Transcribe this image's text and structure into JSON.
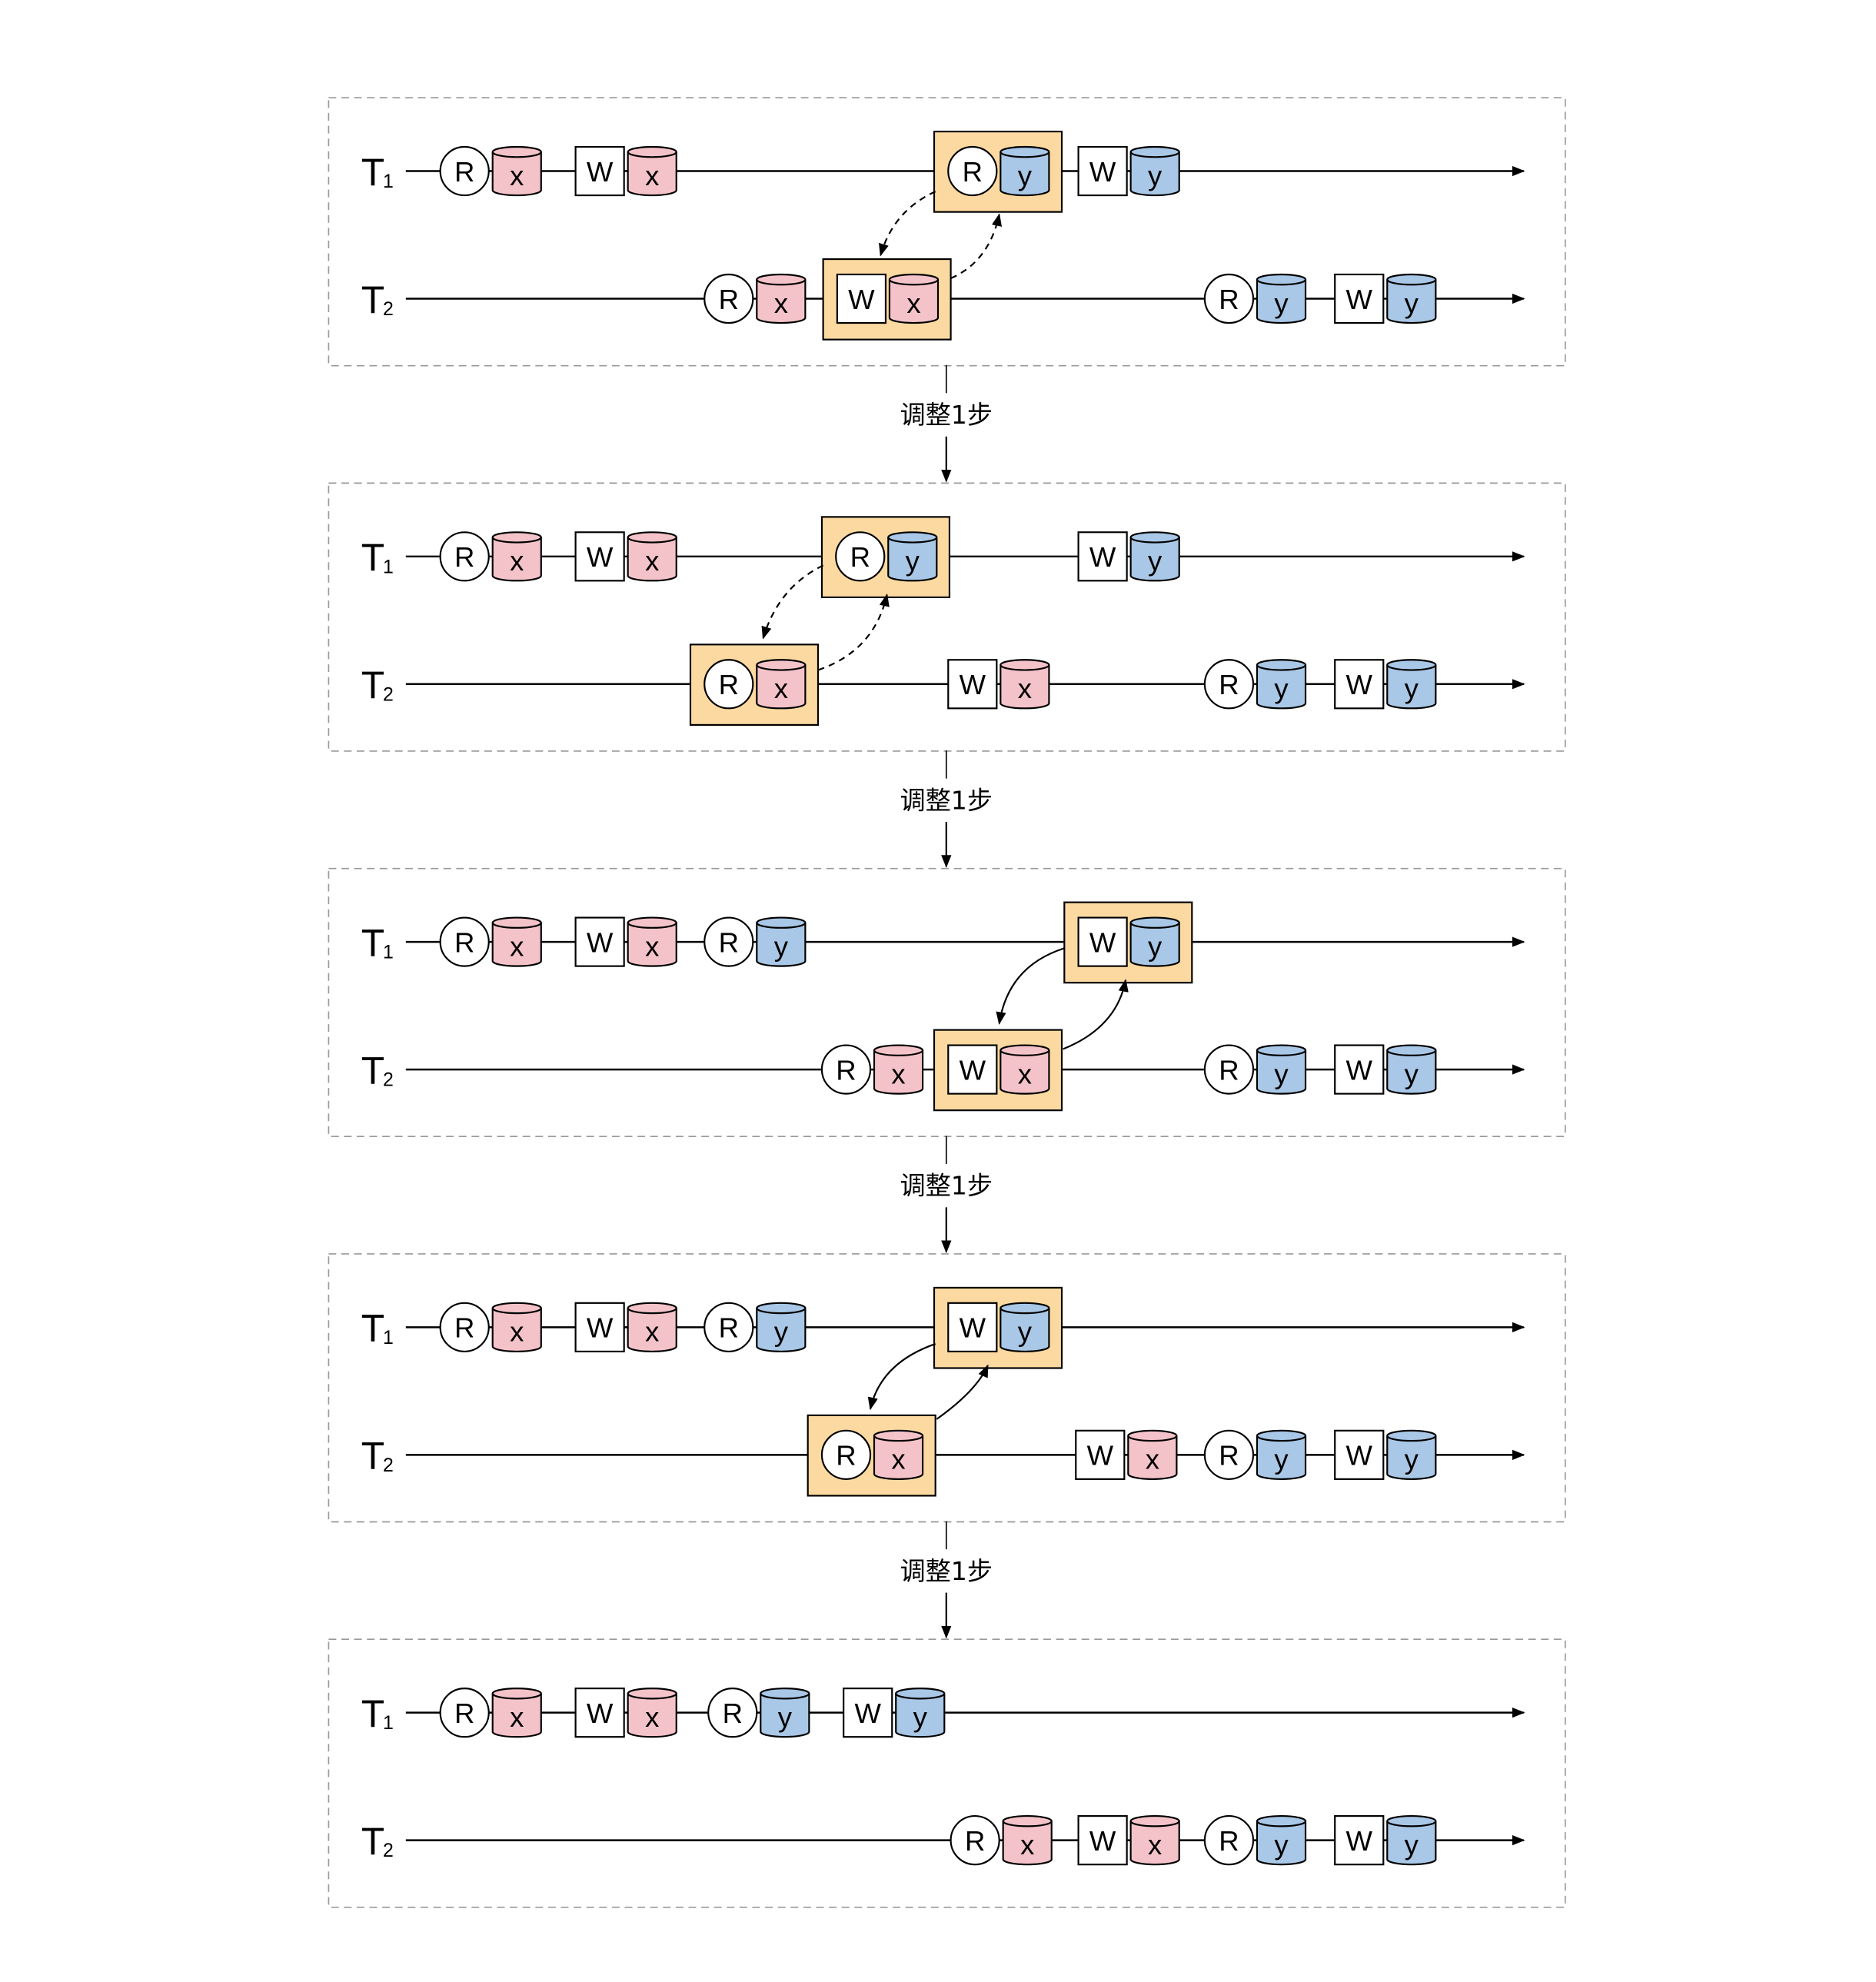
{
  "colors": {
    "x": "#f4c3c9",
    "y": "#a9c7e6",
    "highlight": "#fcd9a0"
  },
  "transaction_labels": [
    {
      "main": "T",
      "sub": "1"
    },
    {
      "main": "T",
      "sub": "2"
    }
  ],
  "step_label": "调整1步",
  "panels": [
    {
      "conflict_arrow_style": "dashed",
      "T1": [
        {
          "op": "R",
          "item": "x"
        },
        {
          "op": "W",
          "item": "x"
        },
        {
          "op": "R",
          "item": "y",
          "highlight": true
        },
        {
          "op": "W",
          "item": "y"
        }
      ],
      "T2": [
        {
          "op": "R",
          "item": "x"
        },
        {
          "op": "W",
          "item": "x",
          "highlight": true
        },
        {
          "op": "R",
          "item": "y"
        },
        {
          "op": "W",
          "item": "y"
        }
      ]
    },
    {
      "conflict_arrow_style": "dashed",
      "T1": [
        {
          "op": "R",
          "item": "x"
        },
        {
          "op": "W",
          "item": "x"
        },
        {
          "op": "R",
          "item": "y",
          "highlight": true
        },
        {
          "op": "W",
          "item": "y"
        }
      ],
      "T2": [
        {
          "op": "R",
          "item": "x",
          "highlight": true
        },
        {
          "op": "W",
          "item": "x"
        },
        {
          "op": "R",
          "item": "y"
        },
        {
          "op": "W",
          "item": "y"
        }
      ]
    },
    {
      "conflict_arrow_style": "solid",
      "T1": [
        {
          "op": "R",
          "item": "x"
        },
        {
          "op": "W",
          "item": "x"
        },
        {
          "op": "R",
          "item": "y"
        },
        {
          "op": "W",
          "item": "y",
          "highlight": true
        }
      ],
      "T2": [
        {
          "op": "R",
          "item": "x"
        },
        {
          "op": "W",
          "item": "x",
          "highlight": true
        },
        {
          "op": "R",
          "item": "y"
        },
        {
          "op": "W",
          "item": "y"
        }
      ]
    },
    {
      "conflict_arrow_style": "solid",
      "T1": [
        {
          "op": "R",
          "item": "x"
        },
        {
          "op": "W",
          "item": "x"
        },
        {
          "op": "R",
          "item": "y"
        },
        {
          "op": "W",
          "item": "y",
          "highlight": true
        }
      ],
      "T2": [
        {
          "op": "R",
          "item": "x",
          "highlight": true
        },
        {
          "op": "W",
          "item": "x"
        },
        {
          "op": "R",
          "item": "y"
        },
        {
          "op": "W",
          "item": "y"
        }
      ]
    },
    {
      "conflict_arrow_style": "none",
      "T1": [
        {
          "op": "R",
          "item": "x"
        },
        {
          "op": "W",
          "item": "x"
        },
        {
          "op": "R",
          "item": "y"
        },
        {
          "op": "W",
          "item": "y"
        }
      ],
      "T2": [
        {
          "op": "R",
          "item": "x"
        },
        {
          "op": "W",
          "item": "x"
        },
        {
          "op": "R",
          "item": "y"
        },
        {
          "op": "W",
          "item": "y"
        }
      ]
    }
  ]
}
